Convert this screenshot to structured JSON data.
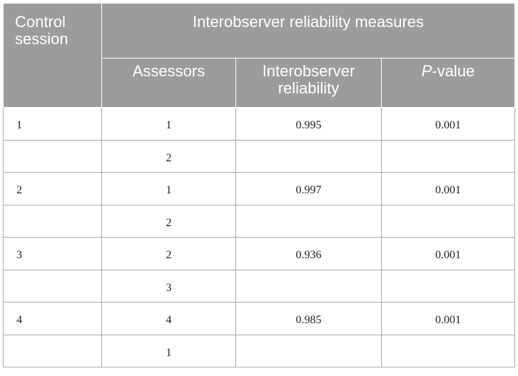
{
  "header": {
    "control_session": "Control session",
    "group_title": "Interobserver reliability measures",
    "assessors": "Assessors",
    "reliability": "Interobserver reliability",
    "pvalue_italic": "P",
    "pvalue_rest": "-value"
  },
  "rows": [
    {
      "session": "1",
      "assessor": "1",
      "reliability": "0.995",
      "p": "0.001"
    },
    {
      "session": "",
      "assessor": "2",
      "reliability": "",
      "p": ""
    },
    {
      "session": "2",
      "assessor": "1",
      "reliability": "0.997",
      "p": "0.001"
    },
    {
      "session": "",
      "assessor": "2",
      "reliability": "",
      "p": ""
    },
    {
      "session": "3",
      "assessor": "2",
      "reliability": "0.936",
      "p": "0.001"
    },
    {
      "session": "",
      "assessor": "3",
      "reliability": "",
      "p": ""
    },
    {
      "session": "4",
      "assessor": "4",
      "reliability": "0.985",
      "p": "0.001"
    },
    {
      "session": "",
      "assessor": "1",
      "reliability": "",
      "p": ""
    }
  ]
}
